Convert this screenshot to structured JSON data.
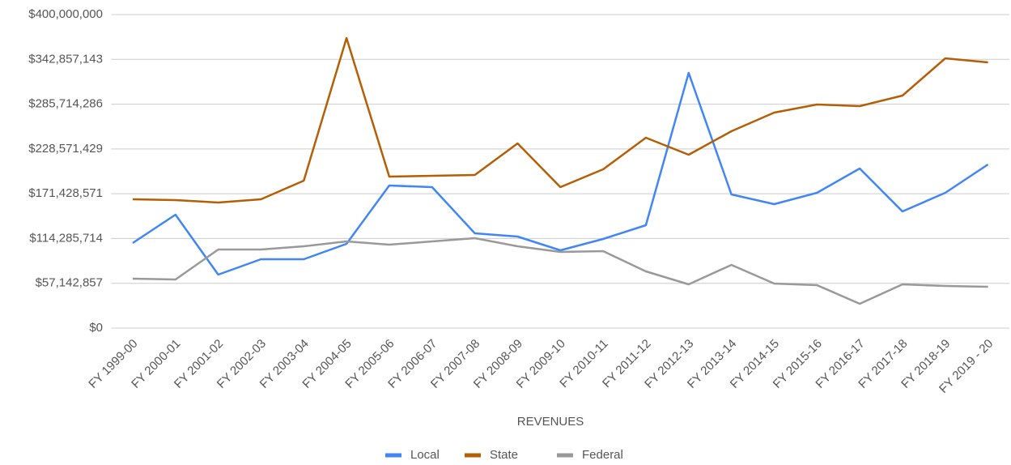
{
  "chart_data": {
    "type": "line",
    "x_label": "REVENUES",
    "categories": [
      "FY 1999-00",
      "FY 2000-01",
      "FY 2001-02",
      "FY 2002-03",
      "FY 2003-04",
      "FY 2004-05",
      "FY 2005-06",
      "FY 2006-07",
      "FY 2007-08",
      "FY 2008-09",
      "FY 2009-10",
      "FY 2010-11",
      "FY 2011-12",
      "FY 2012-13",
      "FY 2013-14",
      "FY 2014-15",
      "FY 2015-16",
      "FY 2016-17",
      "FY 2017-18",
      "FY 2018-19",
      "FY 2019 - 20"
    ],
    "series": [
      {
        "name": "Local",
        "color": "#4285f4",
        "values": [
          108500000,
          144700000,
          68200000,
          87900000,
          87900000,
          107500000,
          181900000,
          179800000,
          120900000,
          116800000,
          99200000,
          113700000,
          131300000,
          325600000,
          170500000,
          158100000,
          172600000,
          203600000,
          148800000,
          172600000,
          208800000
        ]
      },
      {
        "name": "State",
        "color": "#b45f06",
        "values": [
          164300000,
          163300000,
          160200000,
          164300000,
          188100000,
          370000000,
          193300000,
          194300000,
          195300000,
          235700000,
          179800000,
          202600000,
          242900000,
          221200000,
          251200000,
          274900000,
          285300000,
          283200000,
          296600000,
          344200000,
          339000000
        ]
      },
      {
        "name": "Federal",
        "color": "#999999",
        "values": [
          63000000,
          62000000,
          100300000,
          100300000,
          104400000,
          110600000,
          106500000,
          110600000,
          114700000,
          104400000,
          97200000,
          98200000,
          72400000,
          55800000,
          80600000,
          56800000,
          54800000,
          31000000,
          55800000,
          53700000,
          52700000
        ]
      }
    ],
    "ylim": [
      0,
      400000000
    ],
    "yticks": [
      {
        "value": 0,
        "label": "$0"
      },
      {
        "value": 57142857,
        "label": "$57,142,857"
      },
      {
        "value": 114285714,
        "label": "$114,285,714"
      },
      {
        "value": 171428571,
        "label": "$171,428,571"
      },
      {
        "value": 228571429,
        "label": "$228,571,429"
      },
      {
        "value": 285714286,
        "label": "$285,714,286"
      },
      {
        "value": 342857143,
        "label": "$342,857,143"
      },
      {
        "value": 400000000,
        "label": "$400,000,000"
      }
    ],
    "grid": true,
    "legend": "bottom"
  }
}
